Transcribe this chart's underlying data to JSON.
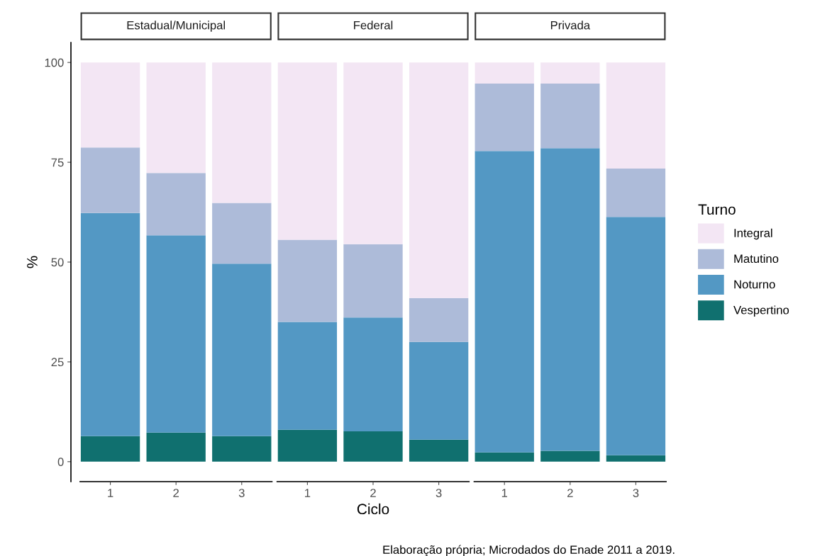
{
  "chart_data": {
    "type": "bar",
    "stacked": true,
    "xlabel": "Ciclo",
    "ylabel": "%",
    "categories": [
      "1",
      "2",
      "3",
      "1",
      "2",
      "3",
      "1",
      "2",
      "3"
    ],
    "ylim": [
      -5,
      105
    ],
    "yticks": [
      0,
      25,
      50,
      75,
      100
    ],
    "grid": false,
    "legend": "right",
    "legend_title": "Turno",
    "annotations": [
      "Estadual/Municipal",
      "Federal",
      "Privada",
      "Elaboração própria; Microdados do Enade 2011 a 2019."
    ],
    "series": [
      {
        "name": "Vespertino",
        "color": "#10706f",
        "values": [
          6.4,
          7.3,
          6.4,
          8.0,
          7.6,
          5.5,
          2.3,
          2.7,
          1.6
        ]
      },
      {
        "name": "Noturno",
        "color": "#5398c4",
        "values": [
          55.9,
          49.4,
          43.2,
          27.0,
          28.5,
          24.5,
          75.5,
          75.8,
          59.7
        ]
      },
      {
        "name": "Matutino",
        "color": "#adbbd9",
        "values": [
          16.4,
          15.6,
          15.2,
          20.6,
          18.4,
          11.0,
          16.9,
          16.2,
          12.1
        ]
      },
      {
        "name": "Integral",
        "color": "#f3e6f4",
        "values": [
          21.3,
          27.7,
          35.2,
          44.4,
          45.5,
          59.0,
          5.3,
          5.3,
          26.6
        ]
      }
    ]
  }
}
